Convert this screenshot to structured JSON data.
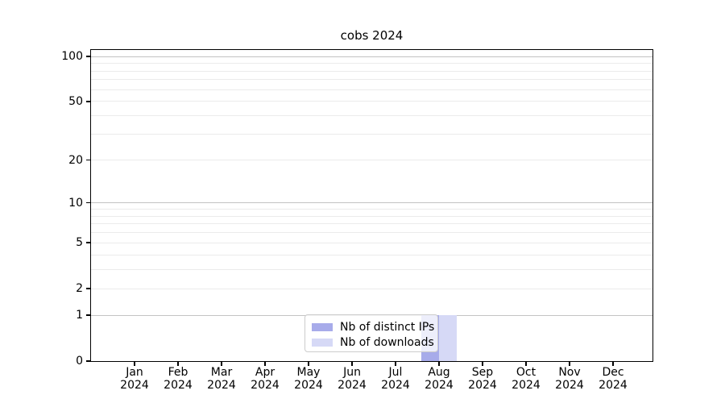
{
  "chart_data": {
    "type": "bar",
    "title": "cobs 2024",
    "categories": [
      "Jan",
      "Feb",
      "Mar",
      "Apr",
      "May",
      "Jun",
      "Jul",
      "Aug",
      "Sep",
      "Oct",
      "Nov",
      "Dec"
    ],
    "category_year": "2024",
    "series": [
      {
        "name": "Nb of distinct IPs",
        "color": "#a7abea",
        "values": [
          0,
          0,
          0,
          0,
          0,
          0,
          0,
          1,
          0,
          0,
          0,
          0
        ]
      },
      {
        "name": "Nb of downloads",
        "color": "#d6d9f6",
        "values": [
          0,
          0,
          0,
          0,
          0,
          0,
          0,
          1,
          0,
          0,
          0,
          0
        ]
      }
    ],
    "y_axis": {
      "scale": "log1p",
      "tick_labels": [
        0,
        1,
        2,
        5,
        10,
        20,
        50,
        100
      ],
      "major_gridlines": [
        1,
        10,
        100
      ],
      "minor_gridlines": [
        2,
        3,
        4,
        5,
        6,
        7,
        8,
        9,
        20,
        30,
        40,
        50,
        60,
        70,
        80,
        90
      ],
      "ylim": [
        0,
        110
      ]
    },
    "legend": {
      "position": "lower center",
      "entries": [
        "Nb of distinct IPs",
        "Nb of downloads"
      ]
    },
    "colors": {
      "major_grid": "#c3c3c3",
      "minor_grid": "#ebebeb",
      "spine": "#000000",
      "background": "#ffffff"
    }
  }
}
